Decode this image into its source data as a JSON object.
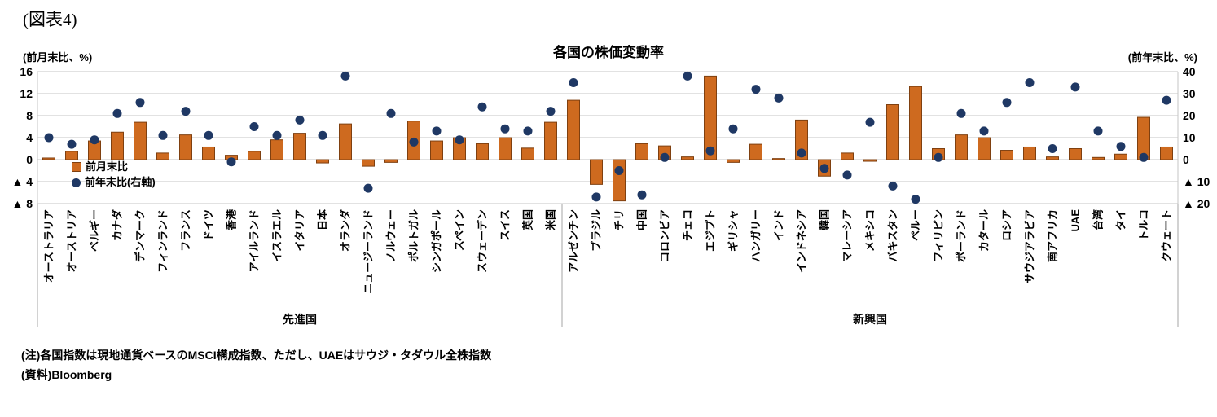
{
  "figure": {
    "label": "(図表4)"
  },
  "chart": {
    "title": "各国の株価変動率",
    "left_axis_label": "(前月末比、%)",
    "right_axis_label": "(前年末比、%)",
    "legend": [
      {
        "label": "前月末比",
        "marker": "bar-square"
      },
      {
        "label": "前年末比(右軸)",
        "marker": "dot-circle"
      }
    ],
    "notes": [
      "(注)各国指数は現地通貨ベースのMSCI構成指数、ただし、UAEはサウジ・タダウル全株指数",
      "(資料)Bloomberg"
    ]
  },
  "chart_data": {
    "type": "bar",
    "subtype": "combo-bar-scatter",
    "title": "各国の株価変動率",
    "groups": [
      {
        "label": "先進国",
        "count": 23
      },
      {
        "label": "新興国",
        "count": 27
      }
    ],
    "categories": [
      "オーストラリア",
      "オーストリア",
      "ベルギー",
      "カナダ",
      "デンマーク",
      "フィンランド",
      "フランス",
      "ドイツ",
      "香港",
      "アイルランド",
      "イスラエル",
      "イタリア",
      "日本",
      "オランダ",
      "ニュージーランド",
      "ノルウェー",
      "ポルトガル",
      "シンガポール",
      "スペイン",
      "スウェーデン",
      "スイス",
      "英国",
      "米国",
      "アルゼンチン",
      "ブラジル",
      "チリ",
      "中国",
      "コロンビア",
      "チェコ",
      "エジプト",
      "ギリシャ",
      "ハンガリー",
      "インド",
      "インドネシア",
      "韓国",
      "マレーシア",
      "メキシコ",
      "パキスタン",
      "ペルー",
      "フィリピン",
      "ポーランド",
      "カタール",
      "ロシア",
      "サウジアラビア",
      "南アフリカ",
      "UAE",
      "台湾",
      "タイ",
      "トルコ",
      "クウェート"
    ],
    "series": [
      {
        "name": "前月末比",
        "type": "bar",
        "axis": "left",
        "values": [
          0.3,
          1.5,
          3.4,
          5.0,
          6.8,
          1.2,
          4.5,
          2.3,
          0.8,
          1.5,
          3.6,
          4.8,
          -0.6,
          6.5,
          -1.2,
          -0.5,
          7.0,
          3.4,
          4.0,
          2.9,
          4.0,
          2.1,
          6.8,
          10.8,
          -4.5,
          -7.5,
          2.9,
          2.5,
          0.5,
          15.2,
          -0.5,
          2.8,
          0.2,
          7.2,
          -3.0,
          1.2,
          -0.3,
          10.0,
          13.3,
          2.0,
          4.5,
          4.0,
          1.7,
          2.3,
          0.5,
          2.0,
          0.4,
          1.0,
          7.7,
          2.3
        ]
      },
      {
        "name": "前年末比(右軸)",
        "type": "scatter",
        "axis": "right",
        "values": [
          10,
          7,
          9,
          21,
          26,
          11,
          22,
          11,
          -1,
          15,
          11,
          18,
          11,
          38,
          -13,
          21,
          8,
          13,
          9,
          24,
          14,
          13,
          22,
          35,
          -17,
          -5,
          -16,
          1,
          38,
          4,
          14,
          32,
          28,
          3,
          -4,
          -7,
          17,
          -12,
          -18,
          1,
          21,
          13,
          26,
          35,
          5,
          33,
          13,
          6,
          1,
          27
        ]
      }
    ],
    "left_axis": {
      "min": -8,
      "max": 16,
      "tick_labels": [
        "16",
        "12",
        "8",
        "4",
        "0",
        "▲ 4",
        "▲ 8"
      ]
    },
    "right_axis": {
      "min": -20,
      "max": 40,
      "tick_labels": [
        "40",
        "30",
        "20",
        "10",
        "0",
        "▲ 10",
        "▲ 20"
      ]
    },
    "grid": true,
    "legend_position": "inside-left",
    "colors": {
      "bar_fill": "#CE6A1F",
      "bar_stroke": "#7F4010",
      "dot": "#1F3864",
      "grid": "#C6C6C6",
      "separator": "#A6A6A6",
      "text": "#000000"
    }
  }
}
